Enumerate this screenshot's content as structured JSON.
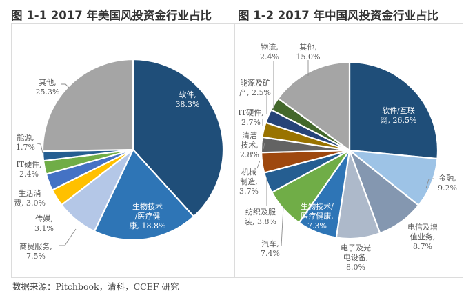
{
  "chart_data": [
    {
      "type": "pie",
      "title": "图 1-1 2017 年美国风投资金行业占比",
      "start": "12 o'clock, clockwise",
      "slices": [
        {
          "label": "软件",
          "value": 38.3,
          "color": "#1f4e79",
          "text": "软件,",
          "pct": "38.3%"
        },
        {
          "label": "生物技术/医疗健康",
          "value": 18.8,
          "color": "#2e75b6",
          "text": "生物技术 /医疗健 康,",
          "pct": "18.8%"
        },
        {
          "label": "商贸服务",
          "value": 7.5,
          "color": "#b4c7e7",
          "text": "商贸服务,",
          "pct": "7.5%"
        },
        {
          "label": "传媒",
          "value": 3.1,
          "color": "#ffc000",
          "text": "传媒,",
          "pct": "3.1%"
        },
        {
          "label": "生活消费",
          "value": 3.0,
          "color": "#4472c4",
          "text": "生活消 费,",
          "pct": "3.0%"
        },
        {
          "label": "IT硬件",
          "value": 2.4,
          "color": "#70ad47",
          "text": "IT硬件,",
          "pct": "2.4%"
        },
        {
          "label": "能源",
          "value": 1.7,
          "color": "#255e91",
          "text": "能源,",
          "pct": "1.7%"
        },
        {
          "label": "其他",
          "value": 25.3,
          "color": "#a5a5a5",
          "text": "其他,",
          "pct": "25.3%"
        }
      ]
    },
    {
      "type": "pie",
      "title": "图 1-2 2017 年中国风投资金行业占比",
      "start": "12 o'clock, clockwise",
      "slices": [
        {
          "label": "软件/互联网",
          "value": 26.5,
          "color": "#1f4e79",
          "text": "软件/互联 网,",
          "pct": "26.5%"
        },
        {
          "label": "金融",
          "value": 9.2,
          "color": "#9dc3e6",
          "text": "金融,",
          "pct": "9.2%"
        },
        {
          "label": "电信及增值业务",
          "value": 8.7,
          "color": "#8497b0",
          "text": "电信及增 值业务,",
          "pct": "8.7%"
        },
        {
          "label": "电子及光电设备",
          "value": 8.0,
          "color": "#adb9ca",
          "text": "电子及光 电设备,",
          "pct": "8.0%"
        },
        {
          "label": "生物技术/医疗健康",
          "value": 7.3,
          "color": "#2e75b6",
          "text": "生物技术/ 医疗健康,",
          "pct": "7.3%"
        },
        {
          "label": "汽车",
          "value": 7.4,
          "color": "#70ad47",
          "text": "汽车,",
          "pct": "7.4%"
        },
        {
          "label": "纺织及服装",
          "value": 3.8,
          "color": "#255e91",
          "text": "纺织及服 装,",
          "pct": "3.8%"
        },
        {
          "label": "机械制造",
          "value": 3.7,
          "color": "#9e480e",
          "text": "机械 制造,",
          "pct": "3.7%"
        },
        {
          "label": "清洁技术",
          "value": 2.8,
          "color": "#636363",
          "text": "清洁 技术,",
          "pct": "2.8%"
        },
        {
          "label": "IT硬件",
          "value": 2.7,
          "color": "#997300",
          "text": "IT硬件,",
          "pct": "2.7%"
        },
        {
          "label": "能源及矿产",
          "value": 2.5,
          "color": "#264478",
          "text": "能源及矿 产,",
          "pct": "2.5%"
        },
        {
          "label": "物流",
          "value": 2.4,
          "color": "#43682b",
          "text": "物流,",
          "pct": "2.4%"
        },
        {
          "label": "其他",
          "value": 15.0,
          "color": "#a5a5a5",
          "text": "其他,",
          "pct": "15.0%"
        }
      ]
    }
  ],
  "labels": {
    "left": {
      "s0": [
        "软件,",
        "38.3%"
      ],
      "s1": [
        "生物技术",
        "/医疗健",
        "康, 18.8%"
      ],
      "s2": [
        "商贸服务,",
        "7.5%"
      ],
      "s3": [
        "传媒,",
        "3.1%"
      ],
      "s4": [
        "生活消",
        "费, 3.0%"
      ],
      "s5": [
        "IT硬件,",
        "2.4%"
      ],
      "s6": [
        "能源,",
        "1.7%"
      ],
      "s7": [
        "其他,",
        "25.3%"
      ]
    },
    "right": {
      "s0": [
        "软件/互联",
        "网, 26.5%"
      ],
      "s1": [
        "金融,",
        "9.2%"
      ],
      "s2": [
        "电信及增",
        "值业务,",
        "8.7%"
      ],
      "s3": [
        "电子及光",
        "电设备,",
        "8.0%"
      ],
      "s4": [
        "生物技术/",
        "医疗健康,",
        "7.3%"
      ],
      "s5": [
        "汽车,",
        "7.4%"
      ],
      "s6": [
        "纺织及服",
        "装, 3.8%"
      ],
      "s7": [
        "机械",
        "制造,",
        "3.7%"
      ],
      "s8": [
        "清洁",
        "技术,",
        "2.8%"
      ],
      "s9": [
        "IT硬件,",
        "2.7%"
      ],
      "s10": [
        "能源及矿",
        "产, 2.5%"
      ],
      "s11": [
        "物流,",
        "2.4%"
      ],
      "s12": [
        "其他,",
        "15.0%"
      ]
    }
  },
  "titles": {
    "left": "图 1-1 2017 年美国风投资金行业占比",
    "right": "图 1-2 2017 年中国风投资金行业占比"
  },
  "source": "数据来源：Pitchbook，清科，CCEF 研究"
}
